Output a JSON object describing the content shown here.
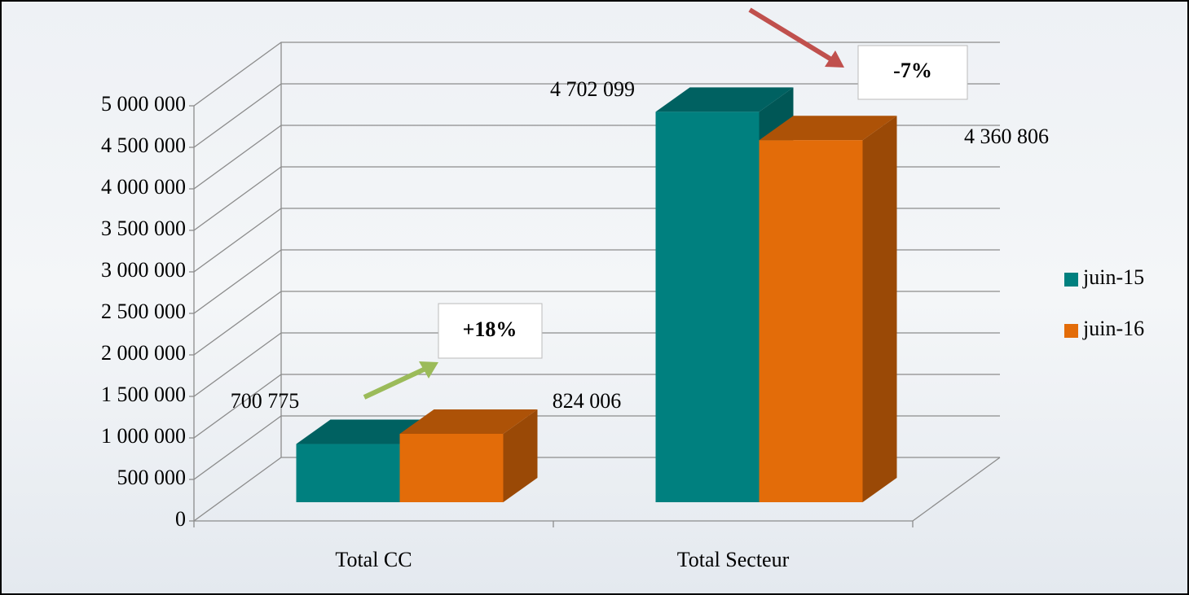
{
  "chart_data": {
    "type": "bar3d",
    "categories": [
      "Total CC",
      "Total Secteur"
    ],
    "series": [
      {
        "name": "juin-15",
        "color": "#00807f",
        "values": [
          700775,
          4702099
        ],
        "value_labels": [
          "700 775",
          "4 702 099"
        ]
      },
      {
        "name": "juin-16",
        "color": "#e36c09",
        "values": [
          824006,
          4360806
        ],
        "value_labels": [
          "824 006",
          "4 360 806"
        ]
      }
    ],
    "ylim": [
      0,
      5000000
    ],
    "yticks": [
      0,
      {
        "value": 500000,
        "label": "500 000"
      },
      {
        "value": 1000000,
        "label": "1 000 000"
      },
      {
        "value": 1500000,
        "label": "1 500 000"
      },
      {
        "value": 2000000,
        "label": "2 000 000"
      },
      {
        "value": 2500000,
        "label": "2 500 000"
      },
      {
        "value": 3000000,
        "label": "3 000 000"
      },
      {
        "value": 3500000,
        "label": "3 500 000"
      },
      {
        "value": 4000000,
        "label": "4 000 000"
      },
      {
        "value": 4500000,
        "label": "4 500 000"
      },
      {
        "value": 5000000,
        "label": "5 000 000"
      }
    ],
    "grid": true,
    "legend": "right",
    "annotations": [
      "+18%",
      "-7%"
    ]
  }
}
